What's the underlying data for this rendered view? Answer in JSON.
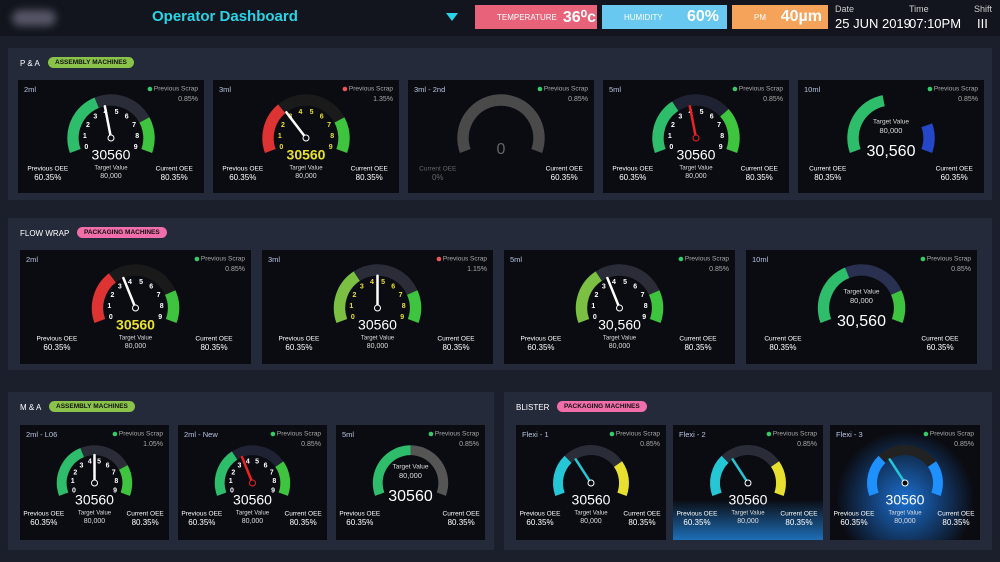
{
  "header": {
    "title": "Operator Dashboard",
    "temperature": {
      "label": "TEMPERATURE",
      "value": "36⁰c"
    },
    "humidity": {
      "label": "HUMIDITY",
      "value": "60%"
    },
    "pm": {
      "label": "PM",
      "value": "40µm"
    },
    "date": {
      "label": "Date",
      "value": "25 JUN 2019"
    },
    "time": {
      "label": "Time",
      "value": "07:10PM"
    },
    "shift": {
      "label": "Shift",
      "value": "III"
    }
  },
  "sections": [
    {
      "name": "P & A",
      "tag": "ASSEMBLY MACHINES",
      "tag_color": "#8bc34a",
      "cards": [
        {
          "name": "2ml",
          "dot": "#3c6",
          "scrap_label": "Previous Scrap",
          "scrap": "0.85%",
          "scale": [
            "0",
            "1",
            "2",
            "3",
            "4",
            "5",
            "6",
            "7",
            "8",
            "9"
          ],
          "value": "30560",
          "target_label": "Target Value",
          "target": "80,000",
          "prev_label": "Previous OEE",
          "prev": "60.35%",
          "curr_label": "Current OEE",
          "curr": "80.35%"
        },
        {
          "name": "3ml",
          "dot": "#e55",
          "scrap_label": "Previous Scrap",
          "scrap": "1.35%",
          "scale": [
            "0",
            "1",
            "2",
            "3",
            "4",
            "5",
            "6",
            "7",
            "8",
            "9"
          ],
          "value": "30560",
          "target_label": "Target Value",
          "target": "80,000",
          "prev_label": "Previous OEE",
          "prev": "60.35%",
          "curr_label": "Current OEE",
          "curr": "80.35%"
        },
        {
          "name": "3ml - 2nd",
          "dot": "#3c6",
          "scrap_label": "Previous Scrap",
          "scrap": "0.85%",
          "value": "0",
          "prev_label": "Current OEE",
          "prev": "0%",
          "curr_label": "Current OEE",
          "curr": "60.35%"
        },
        {
          "name": "5ml",
          "dot": "#3c6",
          "scrap_label": "Previous Scrap",
          "scrap": "0.85%",
          "scale": [
            "0",
            "1",
            "2",
            "3",
            "4",
            "5",
            "6",
            "7",
            "8",
            "9"
          ],
          "value": "30560",
          "target_label": "Target Value",
          "target": "80,000",
          "prev_label": "Previous OEE",
          "prev": "60.35%",
          "curr_label": "Current OEE",
          "curr": "80.35%"
        },
        {
          "name": "10ml",
          "dot": "#3c6",
          "scrap_label": "Previous Scrap",
          "scrap": "0.85%",
          "value": "30,560",
          "target_label": "Target Value",
          "target": "80,000",
          "prev_label": "Current OEE",
          "prev": "80.35%",
          "curr_label": "Current OEE",
          "curr": "60.35%"
        }
      ]
    },
    {
      "name": "FLOW WRAP",
      "tag": "PACKAGING MACHINES",
      "tag_color": "#f06eaa",
      "cards": [
        {
          "name": "2ml",
          "dot": "#3c6",
          "scrap_label": "Previous Scrap",
          "scrap": "0.85%",
          "scale": [
            "0",
            "1",
            "2",
            "3",
            "4",
            "5",
            "6",
            "7",
            "8",
            "9"
          ],
          "value": "30560",
          "target_label": "Target Value",
          "target": "80,000",
          "prev_label": "Previous OEE",
          "prev": "60.35%",
          "curr_label": "Current OEE",
          "curr": "80.35%"
        },
        {
          "name": "3ml",
          "dot": "#e55",
          "scrap_label": "Previous Scrap",
          "scrap": "1.15%",
          "scale": [
            "0",
            "1",
            "2",
            "3",
            "4",
            "5",
            "6",
            "7",
            "8",
            "9"
          ],
          "value": "30560",
          "target_label": "Target Value",
          "target": "80,000",
          "prev_label": "Previous OEE",
          "prev": "60.35%",
          "curr_label": "Current OEE",
          "curr": "80.35%"
        },
        {
          "name": "5ml",
          "dot": "#3c6",
          "scrap_label": "Previous Scrap",
          "scrap": "0.85%",
          "scale": [
            "0",
            "1",
            "2",
            "3",
            "4",
            "5",
            "6",
            "7",
            "8",
            "9"
          ],
          "value": "30,560",
          "target_label": "Target Value",
          "target": "80,000",
          "prev_label": "Previous OEE",
          "prev": "60.35%",
          "curr_label": "Current OEE",
          "curr": "80.35%"
        },
        {
          "name": "10ml",
          "dot": "#3c6",
          "scrap_label": "Previous Scrap",
          "scrap": "0.85%",
          "value": "30,560",
          "target_label": "Target Value",
          "target": "80,000",
          "prev_label": "Current OEE",
          "prev": "80.35%",
          "curr_label": "Current OEE",
          "curr": "60.35%"
        }
      ]
    },
    {
      "name": "M & A",
      "tag": "ASSEMBLY MACHINES",
      "tag_color": "#8bc34a",
      "cards": [
        {
          "name": "2ml - L06",
          "dot": "#3c6",
          "scrap_label": "Previous Scrap",
          "scrap": "1.05%",
          "scale": [
            "0",
            "1",
            "2",
            "3",
            "4",
            "5",
            "6",
            "7",
            "8",
            "9"
          ],
          "value": "30560",
          "target_label": "Target Value",
          "target": "80,000",
          "prev_label": "Previous OEE",
          "prev": "60.35%",
          "curr_label": "Current OEE",
          "curr": "80.35%"
        },
        {
          "name": "2ml - New",
          "dot": "#3c6",
          "scrap_label": "Previous Scrap",
          "scrap": "0.85%",
          "scale": [
            "0",
            "1",
            "2",
            "3",
            "4",
            "5",
            "6",
            "7",
            "8",
            "9"
          ],
          "value": "30560",
          "target_label": "Target Value",
          "target": "80,000",
          "prev_label": "Previous OEE",
          "prev": "60.35%",
          "curr_label": "Current OEE",
          "curr": "80.35%"
        },
        {
          "name": "5ml",
          "dot": "#3c6",
          "scrap_label": "Previous Scrap",
          "scrap": "0.85%",
          "value": "30560",
          "target_label": "Target Value",
          "target": "80,000",
          "prev_label": "Previous OEE",
          "prev": "60.35%",
          "curr_label": "Current OEE",
          "curr": "80.35%"
        }
      ]
    },
    {
      "name": "BLISTER",
      "tag": "PACKAGING MACHINES",
      "tag_color": "#f06eaa",
      "cards": [
        {
          "name": "Flexi - 1",
          "dot": "#3c6",
          "scrap_label": "Previous Scrap",
          "scrap": "0.85%",
          "value": "30560",
          "target_label": "Target Value",
          "target": "80,000",
          "prev_label": "Previous OEE",
          "prev": "60.35%",
          "curr_label": "Current OEE",
          "curr": "80.35%"
        },
        {
          "name": "Flexi - 2",
          "dot": "#3c6",
          "scrap_label": "Previous Scrap",
          "scrap": "0.85%",
          "value": "30560",
          "target_label": "Target Value",
          "target": "80,000",
          "prev_label": "Previous OEE",
          "prev": "60.35%",
          "curr_label": "Current OEE",
          "curr": "80.35%"
        },
        {
          "name": "Flexi - 3",
          "dot": "#3c6",
          "scrap_label": "Previous Scrap",
          "scrap": "0.85%",
          "value": "30560",
          "target_label": "Target Value",
          "target": "80,000",
          "prev_label": "Previous OEE",
          "prev": "60.35%",
          "curr_label": "Current OEE",
          "curr": "80.35%"
        }
      ]
    }
  ]
}
